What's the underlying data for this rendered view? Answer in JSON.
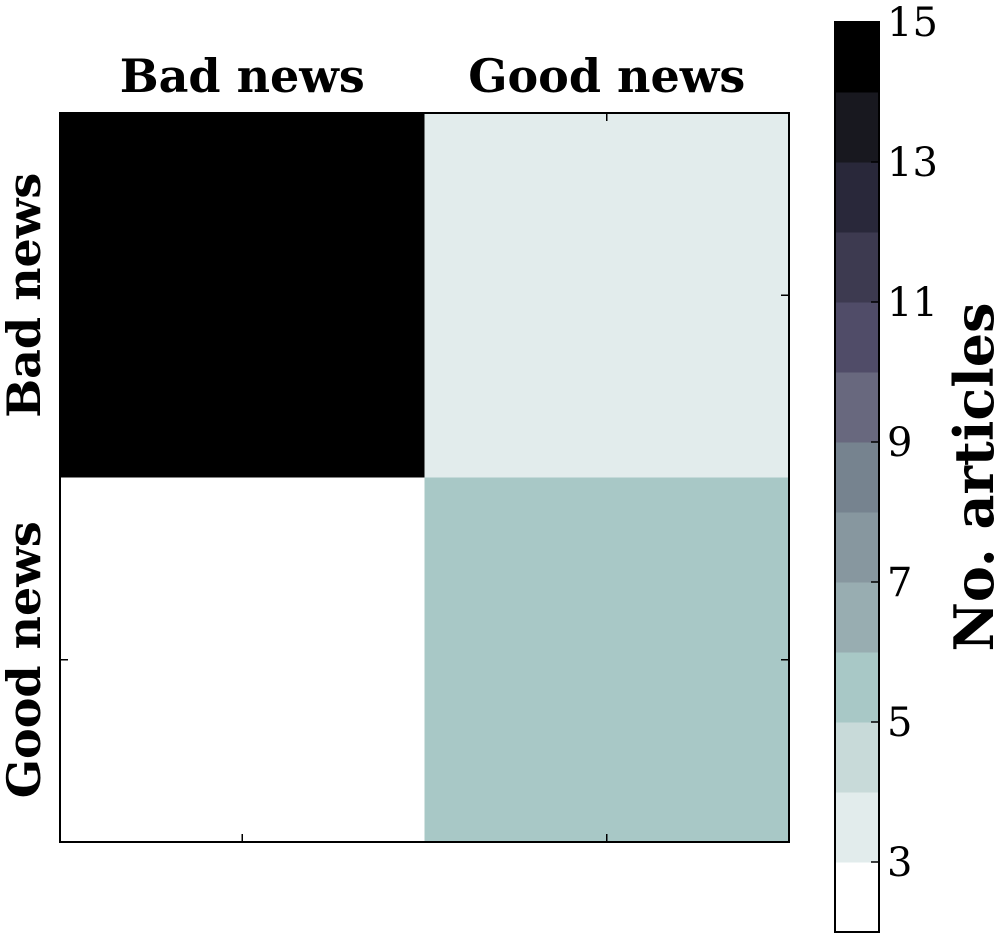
{
  "chart_data": {
    "type": "heatmap",
    "x_categories": [
      "Bad news",
      "Good news"
    ],
    "y_categories": [
      "Bad news",
      "Good news"
    ],
    "values": [
      [
        15,
        3
      ],
      [
        2,
        5
      ]
    ],
    "colorbar": {
      "label": "No. articles",
      "range": [
        2,
        15
      ],
      "ticks": [
        3,
        5,
        7,
        9,
        11,
        13,
        15
      ],
      "colors": [
        "#ffffff",
        "#e2ecec",
        "#c8dad9",
        "#a8c8c6",
        "#98adb1",
        "#87979f",
        "#76838f",
        "#68687e",
        "#504c68",
        "#3d3a50",
        "#29283a",
        "#18181f",
        "#000000"
      ]
    },
    "grid": false
  }
}
